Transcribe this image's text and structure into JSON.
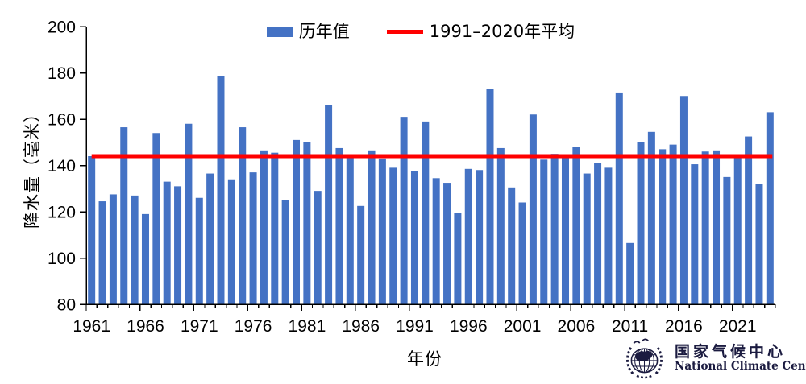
{
  "legend": {
    "bars_label": "历年值",
    "avg_label": "1991–2020年平均"
  },
  "y_axis": {
    "title": "降水量（毫米）"
  },
  "x_axis": {
    "title": "年份"
  },
  "logo": {
    "name_cn": "国家气候中心",
    "name_en": "National Climate Center"
  },
  "colors": {
    "bar": "#4472C4",
    "avg_line": "#FF0000",
    "axis": "#000000",
    "logo": "#1B1B40"
  },
  "chart_data": {
    "type": "bar",
    "title": "",
    "xlabel": "年份",
    "ylabel": "降水量（毫米）",
    "ylim": [
      80,
      200
    ],
    "y_ticks": [
      80,
      100,
      120,
      140,
      160,
      180,
      200
    ],
    "x_tick_labels": [
      "1961",
      "1966",
      "1971",
      "1976",
      "1981",
      "1986",
      "1991",
      "1996",
      "2001",
      "2006",
      "2011",
      "2016",
      "2021"
    ],
    "grid": false,
    "legend_position": "top-center",
    "categories": [
      1961,
      1962,
      1963,
      1964,
      1965,
      1966,
      1967,
      1968,
      1969,
      1970,
      1971,
      1972,
      1973,
      1974,
      1975,
      1976,
      1977,
      1978,
      1979,
      1980,
      1981,
      1982,
      1983,
      1984,
      1985,
      1986,
      1987,
      1988,
      1989,
      1990,
      1991,
      1992,
      1993,
      1994,
      1995,
      1996,
      1997,
      1998,
      1999,
      2000,
      2001,
      2002,
      2003,
      2004,
      2005,
      2006,
      2007,
      2008,
      2009,
      2010,
      2011,
      2012,
      2013,
      2014,
      2015,
      2016,
      2017,
      2018,
      2019,
      2020,
      2021,
      2022,
      2023,
      2024
    ],
    "series": [
      {
        "name": "历年值",
        "color": "#4472C4",
        "values": [
          144,
          124.5,
          127.5,
          156.5,
          127,
          119,
          154,
          133,
          131,
          158,
          126,
          136.5,
          178.5,
          134,
          156.5,
          137,
          146.5,
          145.5,
          125,
          151,
          150,
          129,
          166,
          147.5,
          144,
          122.5,
          146.5,
          143,
          139,
          161,
          137.5,
          159,
          134.5,
          132.5,
          119.5,
          138.5,
          138,
          173,
          147.5,
          130.5,
          124,
          162,
          142.5,
          145,
          143.5,
          148,
          136.5,
          141,
          139,
          171.5,
          106.5,
          150,
          154.5,
          147,
          149,
          170,
          140.5,
          146,
          146.5,
          135,
          144.5,
          152.5,
          132,
          163
        ]
      }
    ],
    "reference_line": {
      "name": "1991–2020年平均",
      "value": 144,
      "color": "#FF0000"
    }
  }
}
